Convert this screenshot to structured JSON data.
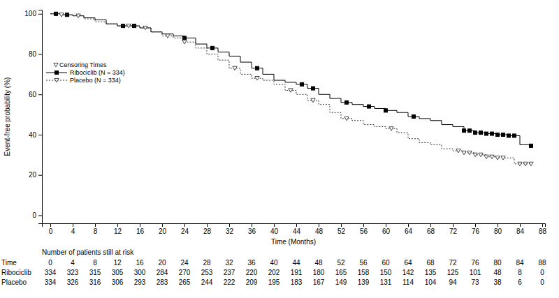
{
  "chart_data": {
    "type": "line",
    "x_label": "Time (Months)",
    "y_label": "Event-free probability (%)",
    "xlim": [
      -1.5,
      88.5
    ],
    "xticks": [
      0,
      4,
      8,
      12,
      16,
      20,
      24,
      28,
      32,
      36,
      40,
      44,
      48,
      52,
      56,
      60,
      64,
      68,
      72,
      76,
      80,
      84,
      88
    ],
    "ylim": [
      -4,
      102
    ],
    "yticks": [
      0,
      20,
      40,
      60,
      80,
      100
    ],
    "grid": false,
    "legend": "left",
    "legend_title": "Censoring Times",
    "series": [
      {
        "name": "Ribociclib (N = 334)",
        "color": "#000000",
        "line_style": "solid",
        "marker": "square",
        "x": [
          0,
          2,
          4,
          6,
          8,
          10,
          12,
          16,
          18,
          20,
          22,
          24,
          26,
          28,
          30,
          32,
          34,
          36,
          38,
          40,
          42,
          44,
          46,
          48,
          50,
          52,
          54,
          56,
          58,
          60,
          62,
          64,
          66,
          68,
          70,
          72,
          74,
          76,
          78,
          80,
          82,
          84,
          86
        ],
        "values": [
          100,
          99.5,
          99,
          98,
          97,
          95,
          94,
          93,
          91,
          90,
          89,
          88,
          85,
          83,
          81,
          79,
          76,
          73,
          70,
          67,
          66,
          65,
          63,
          60,
          58,
          56,
          55,
          54,
          53,
          52,
          51,
          49,
          48,
          47,
          45,
          44,
          42,
          41,
          40.5,
          40,
          39.5,
          35,
          34.5
        ],
        "censored_x": [
          1,
          3,
          13,
          15,
          24,
          29,
          37,
          45,
          47,
          53,
          57,
          60,
          65,
          74,
          75,
          76,
          77,
          78,
          79,
          80,
          81,
          82,
          83,
          86
        ],
        "censored_values": [
          100,
          99.5,
          94,
          94,
          88,
          83,
          73,
          65,
          63,
          56,
          54,
          52,
          49,
          42,
          42,
          41,
          41,
          40.5,
          40.5,
          40,
          40,
          39.5,
          39.5,
          34.5
        ]
      },
      {
        "name": "Placebo (N = 334)",
        "color": "#333333",
        "line_style": "dotted",
        "marker": "triangle-down",
        "x": [
          0,
          2,
          4,
          6,
          8,
          10,
          12,
          16,
          18,
          20,
          22,
          24,
          26,
          28,
          30,
          32,
          34,
          36,
          38,
          40,
          42,
          44,
          46,
          48,
          50,
          52,
          54,
          56,
          58,
          60,
          62,
          64,
          66,
          68,
          70,
          72,
          74,
          76,
          78,
          80,
          82,
          83,
          86
        ],
        "values": [
          100,
          99.5,
          99,
          97.5,
          96,
          95,
          94,
          93,
          91,
          89,
          88,
          86,
          83,
          80,
          77,
          73,
          70,
          68,
          67,
          65,
          62,
          60,
          57,
          55,
          51,
          48,
          47,
          45,
          44,
          43,
          41,
          38,
          36,
          35,
          33,
          32,
          31,
          30,
          29,
          28.5,
          28.5,
          25.5,
          25.5
        ],
        "censored_x": [
          2,
          5,
          14,
          17,
          21,
          24,
          33,
          37,
          43,
          47,
          53,
          61,
          73,
          74,
          75,
          76,
          77,
          78,
          79,
          80,
          81,
          84,
          85,
          86
        ],
        "censored_values": [
          99.5,
          99,
          94,
          93,
          89,
          86,
          73,
          68,
          62,
          57,
          48,
          43,
          32,
          31,
          31,
          30,
          30,
          29,
          29,
          28.5,
          28.5,
          25.5,
          25.5,
          25.5
        ]
      }
    ],
    "risk_table": {
      "title": "Number of patients still at risk",
      "header": "Time",
      "times": [
        0,
        4,
        8,
        12,
        16,
        20,
        24,
        28,
        32,
        36,
        40,
        44,
        48,
        52,
        56,
        60,
        64,
        68,
        72,
        76,
        80,
        84,
        88
      ],
      "rows": [
        {
          "name": "Ribociclib",
          "values": [
            334,
            323,
            315,
            305,
            300,
            284,
            270,
            253,
            237,
            220,
            202,
            191,
            180,
            165,
            158,
            150,
            142,
            135,
            125,
            101,
            48,
            8,
            0
          ]
        },
        {
          "name": "Placebo",
          "values": [
            334,
            326,
            316,
            306,
            293,
            283,
            265,
            244,
            222,
            209,
            195,
            183,
            167,
            149,
            139,
            131,
            114,
            104,
            94,
            73,
            38,
            6,
            0
          ]
        }
      ]
    }
  }
}
